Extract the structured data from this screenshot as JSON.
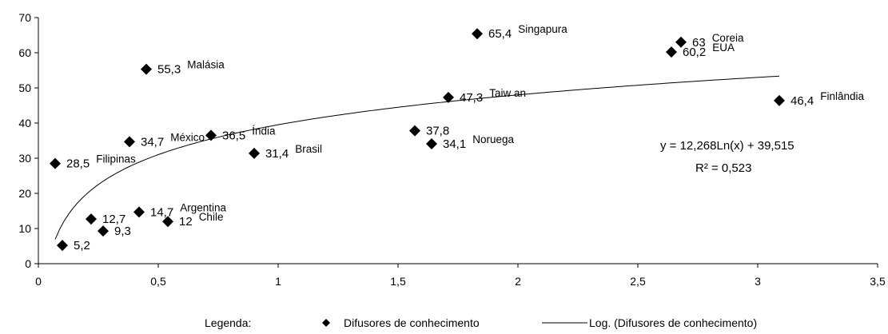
{
  "chart_data": {
    "type": "scatter",
    "xlim": [
      0,
      3.5
    ],
    "ylim": [
      0,
      70
    ],
    "x_ticks": [
      "0",
      "0,5",
      "1",
      "1,5",
      "2",
      "2,5",
      "3",
      "3,5"
    ],
    "y_ticks": [
      "0",
      "10",
      "20",
      "30",
      "40",
      "50",
      "60",
      "70"
    ],
    "grid": false,
    "series": [
      {
        "name": "Difusores de conhecimento",
        "marker": "diamond",
        "points": [
          {
            "x": 0.1,
            "y": 5.2,
            "value_label": "5,2",
            "name": ""
          },
          {
            "x": 0.22,
            "y": 12.7,
            "value_label": "12,7",
            "name": ""
          },
          {
            "x": 0.27,
            "y": 9.3,
            "value_label": "9,3",
            "name": ""
          },
          {
            "x": 0.07,
            "y": 28.5,
            "value_label": "28,5",
            "name": "Filipinas"
          },
          {
            "x": 0.38,
            "y": 34.7,
            "value_label": "34,7",
            "name": "México"
          },
          {
            "x": 0.42,
            "y": 14.7,
            "value_label": "14,7",
            "name": "Argentina"
          },
          {
            "x": 0.45,
            "y": 55.3,
            "value_label": "55,3",
            "name": "Malásia"
          },
          {
            "x": 0.54,
            "y": 12,
            "value_label": "12",
            "name": "Chile"
          },
          {
            "x": 0.72,
            "y": 36.5,
            "value_label": "36,5",
            "name": "Índia"
          },
          {
            "x": 0.9,
            "y": 31.4,
            "value_label": "31,4",
            "name": "Brasil"
          },
          {
            "x": 1.57,
            "y": 37.8,
            "value_label": "37,8",
            "name": ""
          },
          {
            "x": 1.64,
            "y": 34.1,
            "value_label": "34,1",
            "name": "Noruega"
          },
          {
            "x": 1.71,
            "y": 47.3,
            "value_label": "47,3",
            "name": "Taiw an"
          },
          {
            "x": 1.83,
            "y": 65.4,
            "value_label": "65,4",
            "name": "Singapura"
          },
          {
            "x": 2.64,
            "y": 60.2,
            "value_label": "60,2",
            "name": "EUA"
          },
          {
            "x": 2.68,
            "y": 63,
            "value_label": "63",
            "name": "Coreia"
          },
          {
            "x": 3.09,
            "y": 46.4,
            "value_label": "46,4",
            "name": "Finlândia"
          }
        ]
      }
    ],
    "trendline": {
      "name": "Log. (Difusores de conhecimento)",
      "type": "logarithmic",
      "a": 12.268,
      "b": 39.515,
      "x_range": [
        0.07,
        3.09
      ],
      "equation_text": "y = 12,268Ln(x) + 39,515",
      "r2_text": "R² = 0,523"
    },
    "legend": {
      "title": "Legenda:",
      "placement": "bottom",
      "marker_label": "Difusores de conhecimento",
      "line_label": "Log. (Difusores de conhecimento)"
    }
  }
}
